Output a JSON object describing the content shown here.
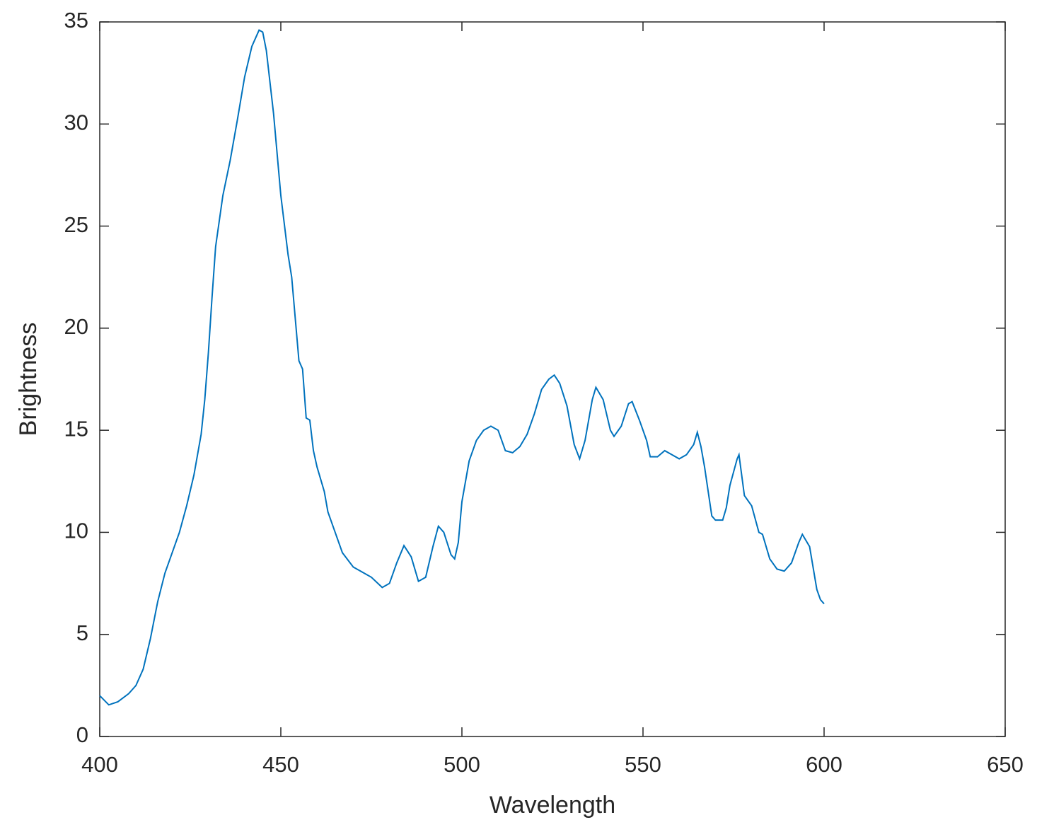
{
  "chart_data": {
    "type": "line",
    "x_label": "Wavelength",
    "y_label": "Brightness",
    "xlim": [
      400,
      650
    ],
    "ylim": [
      0,
      35
    ],
    "xticks": [
      400,
      450,
      500,
      550,
      600,
      650
    ],
    "yticks": [
      0,
      5,
      10,
      15,
      20,
      25,
      30,
      35
    ],
    "grid": false,
    "series": [
      {
        "color": "#0072bd",
        "x": [
          400,
          402.5,
          405,
          408,
          410,
          412,
          414,
          416,
          418,
          420,
          422,
          424,
          426,
          428,
          429,
          430,
          431,
          432,
          434,
          436,
          438,
          440,
          442,
          444,
          445,
          446,
          448,
          450,
          452,
          453,
          455,
          456,
          457,
          458,
          459,
          460,
          462,
          463,
          465,
          467,
          470,
          473,
          475,
          478,
          480,
          482,
          484,
          486,
          488,
          490,
          492,
          493.5,
          495,
          497,
          498,
          499,
          500,
          502,
          504,
          506,
          508,
          510,
          512,
          514,
          516,
          518,
          520,
          522,
          524,
          525.5,
          527,
          529,
          531,
          532.5,
          534,
          536,
          537,
          539,
          541,
          542,
          544,
          546,
          547,
          549,
          551,
          552,
          554,
          556,
          558,
          560,
          562,
          564,
          565,
          566,
          567,
          568,
          569,
          570,
          572,
          573,
          574,
          576,
          576.5,
          578,
          580,
          582,
          583,
          585,
          587,
          589,
          591,
          593,
          594,
          596,
          598,
          599,
          600
        ],
        "values": [
          2.0,
          1.55,
          1.7,
          2.1,
          2.5,
          3.3,
          4.8,
          6.6,
          8.0,
          9.0,
          10.0,
          11.3,
          12.8,
          14.8,
          16.5,
          18.8,
          21.5,
          24.0,
          26.5,
          28.2,
          30.2,
          32.3,
          33.8,
          34.6,
          34.5,
          33.6,
          30.5,
          26.5,
          23.6,
          22.5,
          18.4,
          18.0,
          15.6,
          15.5,
          14.0,
          13.2,
          12.0,
          11.0,
          10.0,
          9.0,
          8.3,
          8.0,
          7.8,
          7.3,
          7.5,
          8.5,
          9.35,
          8.8,
          7.6,
          7.8,
          9.3,
          10.3,
          10.0,
          8.9,
          8.7,
          9.5,
          11.5,
          13.5,
          14.5,
          15.0,
          15.2,
          15.0,
          14.0,
          13.9,
          14.2,
          14.8,
          15.8,
          17.0,
          17.5,
          17.7,
          17.3,
          16.2,
          14.3,
          13.6,
          14.5,
          16.5,
          17.1,
          16.5,
          15.0,
          14.7,
          15.2,
          16.3,
          16.4,
          15.5,
          14.5,
          13.7,
          13.7,
          14.0,
          13.8,
          13.6,
          13.8,
          14.3,
          14.9,
          14.2,
          13.2,
          12.0,
          10.8,
          10.6,
          10.6,
          11.2,
          12.3,
          13.6,
          13.8,
          11.8,
          11.3,
          10.0,
          9.9,
          8.7,
          8.2,
          8.1,
          8.5,
          9.5,
          9.9,
          9.3,
          7.2,
          6.7,
          6.5
        ]
      }
    ]
  }
}
